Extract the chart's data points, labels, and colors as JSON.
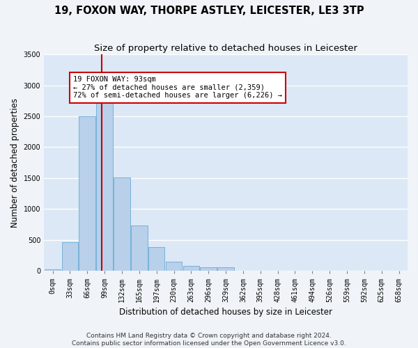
{
  "title_line1": "19, FOXON WAY, THORPE ASTLEY, LEICESTER, LE3 3TP",
  "title_line2": "Size of property relative to detached houses in Leicester",
  "xlabel": "Distribution of detached houses by size in Leicester",
  "ylabel": "Number of detached properties",
  "footnote1": "Contains HM Land Registry data © Crown copyright and database right 2024.",
  "footnote2": "Contains public sector information licensed under the Open Government Licence v3.0.",
  "bar_labels": [
    "0sqm",
    "33sqm",
    "66sqm",
    "99sqm",
    "132sqm",
    "165sqm",
    "197sqm",
    "230sqm",
    "263sqm",
    "296sqm",
    "329sqm",
    "362sqm",
    "395sqm",
    "428sqm",
    "461sqm",
    "494sqm",
    "526sqm",
    "559sqm",
    "592sqm",
    "625sqm",
    "658sqm"
  ],
  "bar_values": [
    30,
    470,
    2500,
    2820,
    1510,
    740,
    390,
    145,
    80,
    55,
    55,
    0,
    0,
    0,
    0,
    0,
    0,
    0,
    0,
    0,
    0
  ],
  "bar_color": "#b8d0ea",
  "bar_edgecolor": "#6aaad4",
  "background_color": "#dce8f5",
  "fig_background_color": "#f0f4f8",
  "grid_color": "#ffffff",
  "annotation_text": "19 FOXON WAY: 93sqm\n← 27% of detached houses are smaller (2,359)\n72% of semi-detached houses are larger (6,226) →",
  "vline_x": 2.82,
  "vline_color": "#cc0000",
  "annotation_box_facecolor": "#ffffff",
  "annotation_box_edgecolor": "#cc0000",
  "ylim": [
    0,
    3500
  ],
  "yticks": [
    0,
    500,
    1000,
    1500,
    2000,
    2500,
    3000,
    3500
  ],
  "title_fontsize": 10.5,
  "subtitle_fontsize": 9.5,
  "axis_label_fontsize": 8.5,
  "tick_fontsize": 7,
  "annotation_fontsize": 7.5,
  "footnote_fontsize": 6.5
}
